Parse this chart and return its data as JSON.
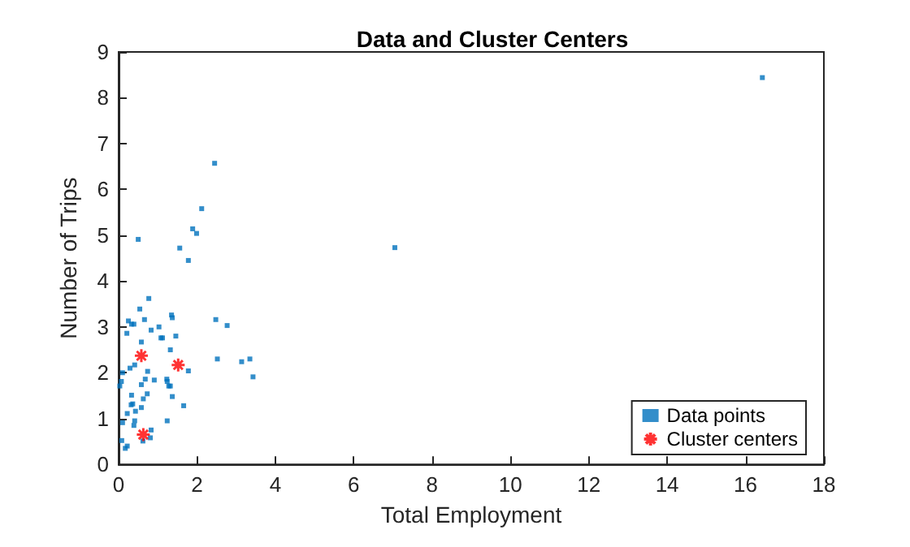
{
  "chart_data": {
    "type": "scatter",
    "title": "Data and Cluster Centers",
    "xlabel": "Total Employment",
    "ylabel": "Number of Trips",
    "xlim": [
      0,
      18
    ],
    "xticks": [
      0,
      2,
      4,
      6,
      8,
      10,
      12,
      14,
      16,
      18
    ],
    "ylim": [
      0,
      9
    ],
    "yticks": [
      0,
      1,
      2,
      3,
      4,
      5,
      6,
      7,
      8,
      9
    ],
    "grid": false,
    "legend": "bottom right",
    "series": [
      {
        "name": "Data points",
        "color": "#0072bd",
        "marker": "square",
        "x": [
          0.5,
          1.89,
          1.99,
          1.56,
          1.78,
          0.77,
          0.54,
          0.25,
          0.33,
          0.39,
          0.66,
          0.58,
          0.21,
          0.83,
          1.03,
          1.35,
          1.37,
          2.48,
          2.77,
          1.08,
          1.12,
          1.46,
          1.32,
          2.52,
          3.14,
          3.35,
          3.43,
          1.78,
          0.41,
          0.29,
          0.1,
          0.07,
          0.03,
          0.74,
          0.68,
          0.91,
          0.58,
          1.23,
          1.24,
          1.28,
          1.32,
          0.73,
          0.33,
          0.36,
          0.32,
          0.63,
          0.58,
          0.43,
          0.22,
          1.37,
          1.66,
          0.41,
          0.39,
          0.1,
          1.24,
          0.83,
          0.81,
          0.08,
          0.17,
          0.22,
          0.62,
          2.45,
          2.12,
          7.05,
          16.43
        ],
        "values": [
          4.91,
          5.14,
          5.04,
          4.72,
          4.45,
          3.62,
          3.39,
          3.13,
          3.06,
          3.06,
          3.16,
          2.67,
          2.86,
          2.93,
          3.0,
          3.26,
          3.2,
          3.16,
          3.03,
          2.76,
          2.76,
          2.8,
          2.5,
          2.3,
          2.24,
          2.3,
          1.91,
          2.04,
          2.17,
          2.1,
          2.0,
          1.81,
          1.71,
          2.03,
          1.86,
          1.84,
          1.74,
          1.86,
          1.81,
          1.71,
          1.71,
          1.54,
          1.51,
          1.32,
          1.3,
          1.43,
          1.24,
          1.16,
          1.11,
          1.48,
          1.28,
          0.95,
          0.85,
          0.91,
          0.95,
          0.75,
          0.58,
          0.52,
          0.35,
          0.4,
          0.51,
          6.57,
          5.58,
          4.73,
          8.44
        ]
      },
      {
        "name": "Cluster centers",
        "color": "#ff0000",
        "marker": "cross",
        "x": [
          0.58,
          1.52,
          0.63
        ],
        "values": [
          2.37,
          2.17,
          0.65
        ]
      }
    ]
  }
}
